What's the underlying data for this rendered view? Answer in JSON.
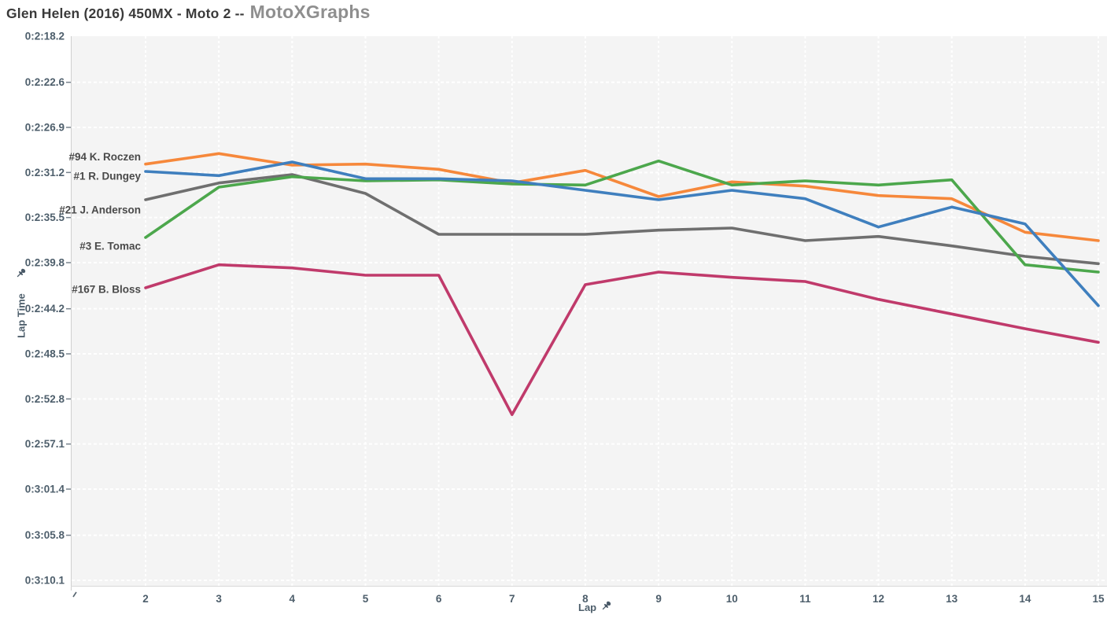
{
  "header": {
    "race_title": "Glen Helen (2016) 450MX - Moto 2 --",
    "brand": "MotoXGraphs"
  },
  "chart_data": {
    "type": "line",
    "title": "Glen Helen (2016) 450MX - Moto 2 -- MotoXGraphs",
    "xlabel": "Lap",
    "ylabel": "Lap Time",
    "grid": true,
    "legend_position": "inline-left-of-first-point",
    "plot_bg": "#f4f4f4",
    "gridline_color": "#ffffff",
    "axis_text_color": "#4d5e6b",
    "series_label_color": "#4a4a4a",
    "x": [
      2,
      3,
      4,
      5,
      6,
      7,
      8,
      9,
      10,
      11,
      12,
      13,
      14,
      15
    ],
    "x_range": [
      0.99,
      15.12
    ],
    "y_range_sec": [
      138.2,
      190.65
    ],
    "y_axis_inverted_note": "faster laps (smaller seconds) at top",
    "y_ticks": [
      {
        "label": "0:2:18.2",
        "sec": 138.2
      },
      {
        "label": "0:2:22.6",
        "sec": 142.6
      },
      {
        "label": "0:2:26.9",
        "sec": 146.9
      },
      {
        "label": "0:2:31.2",
        "sec": 151.2
      },
      {
        "label": "0:2:35.5",
        "sec": 155.5
      },
      {
        "label": "0:2:39.8",
        "sec": 159.8
      },
      {
        "label": "0:2:44.2",
        "sec": 164.2
      },
      {
        "label": "0:2:48.5",
        "sec": 168.5
      },
      {
        "label": "0:2:52.8",
        "sec": 172.8
      },
      {
        "label": "0:2:57.1",
        "sec": 177.1
      },
      {
        "label": "0:3:01.4",
        "sec": 181.4
      },
      {
        "label": "0:3:05.8",
        "sec": 185.8
      },
      {
        "label": "0:3:10.1",
        "sec": 190.1
      }
    ],
    "series": [
      {
        "label": "#94 K. Roczen",
        "color": "#F6883B",
        "values_sec": [
          150.4,
          149.4,
          150.5,
          150.4,
          150.9,
          152.2,
          151.0,
          153.5,
          152.1,
          152.5,
          153.4,
          153.7,
          156.9,
          157.7
        ]
      },
      {
        "label": "#1 R. Dungey",
        "color": "#3F7FBE",
        "values_sec": [
          151.1,
          151.5,
          150.2,
          151.8,
          151.8,
          152.0,
          152.9,
          153.8,
          152.9,
          153.7,
          156.4,
          154.5,
          156.1,
          163.9
        ]
      },
      {
        "label": "#21 J. Anderson",
        "color": "#6F6F6F",
        "values_sec": [
          153.8,
          152.2,
          151.4,
          153.2,
          157.1,
          157.1,
          157.1,
          156.7,
          156.5,
          157.7,
          157.3,
          158.2,
          159.2,
          159.9
        ]
      },
      {
        "label": "#3 E. Tomac",
        "color": "#4CA74C",
        "values_sec": [
          157.4,
          152.6,
          151.6,
          152.0,
          151.9,
          152.3,
          152.4,
          150.1,
          152.4,
          152.0,
          152.4,
          151.9,
          160.0,
          160.7
        ]
      },
      {
        "label": "#167 B. Bloss",
        "color": "#C03A6B",
        "values_sec": [
          162.2,
          160.0,
          160.3,
          161.0,
          161.0,
          174.3,
          161.9,
          160.7,
          161.2,
          161.6,
          163.3,
          164.7,
          166.1,
          167.4
        ]
      }
    ]
  }
}
